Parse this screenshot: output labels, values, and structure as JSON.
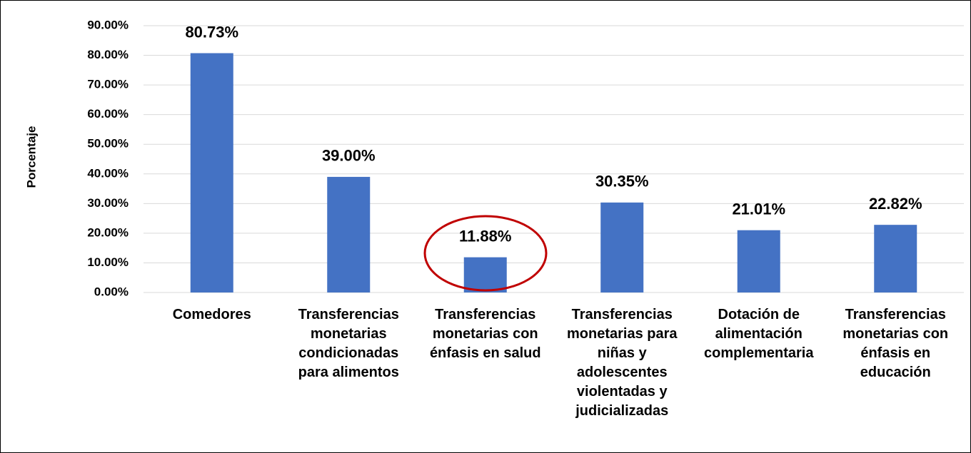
{
  "chart_data": {
    "type": "bar",
    "y_label": "Porcentaje",
    "categories": [
      "Comedores",
      "Transferencias monetarias condicionadas para alimentos",
      "Transferencias monetarias con énfasis en salud",
      "Transferencias monetarias para niñas y adolescentes violentadas y judicializadas",
      "Dotación de alimentación complementaria",
      "Transferencias monetarias con énfasis en educación"
    ],
    "values": [
      80.73,
      39.0,
      11.88,
      30.35,
      21.01,
      22.82
    ],
    "value_labels": [
      "80.73%",
      "39.00%",
      "11.88%",
      "30.35%",
      "21.01%",
      "22.82%"
    ],
    "color": "#4472c4",
    "ylim": [
      0,
      90
    ],
    "yticks": [
      {
        "value": 0,
        "label": "0.00%"
      },
      {
        "value": 10,
        "label": "10.00%"
      },
      {
        "value": 20,
        "label": "20.00%"
      },
      {
        "value": 30,
        "label": "30.00%"
      },
      {
        "value": 40,
        "label": "40.00%"
      },
      {
        "value": 50,
        "label": "50.00%"
      },
      {
        "value": 60,
        "label": "60.00%"
      },
      {
        "value": 70,
        "label": "70.00%"
      },
      {
        "value": 80,
        "label": "80.00%"
      },
      {
        "value": 90,
        "label": "90.00%"
      }
    ],
    "grid": true
  }
}
